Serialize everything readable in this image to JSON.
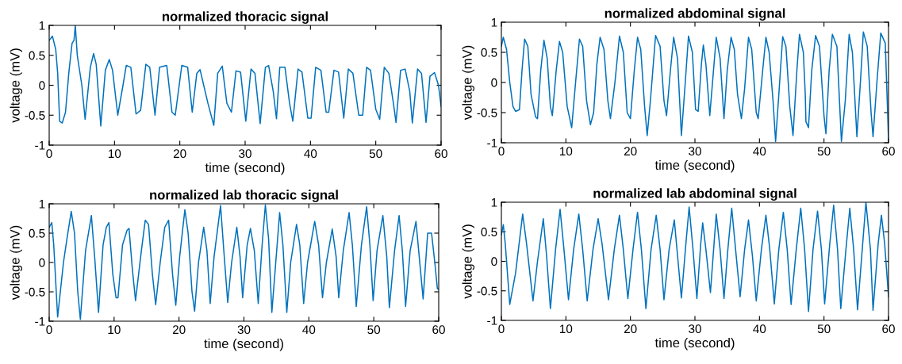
{
  "chart_data": [
    {
      "type": "line",
      "title": "normalized thoracic signal",
      "xlabel": "time (second)",
      "ylabel": "voltage (mV)",
      "xlim": [
        0,
        60
      ],
      "xticks": [
        0,
        10,
        20,
        30,
        40,
        50,
        60
      ],
      "ylim": [
        -1,
        1
      ],
      "yticks": [
        -1,
        -0.5,
        0,
        0.5,
        1
      ],
      "marker": "none",
      "line_style": "solid",
      "series": [
        {
          "color": "#0072bd",
          "x": [
            0,
            0.5,
            1.0,
            1.3,
            1.6,
            2.0,
            2.5,
            3.0,
            3.5,
            3.8,
            4.0,
            4.3,
            5.0,
            5.5,
            6.3,
            6.8,
            7.2,
            7.9,
            8.6,
            9.2,
            9.7,
            10.5,
            11.3,
            11.8,
            12.5,
            13.3,
            14.0,
            14.8,
            15.4,
            16.2,
            16.9,
            18.0,
            18.8,
            19.3,
            20.3,
            21.2,
            21.9,
            22.6,
            23.1,
            24.3,
            25.2,
            25.8,
            26.5,
            27.2,
            27.9,
            28.6,
            29.3,
            30.1,
            30.9,
            31.5,
            32.3,
            33.1,
            33.6,
            34.3,
            34.8,
            35.3,
            36.1,
            36.8,
            37.3,
            38.1,
            38.7,
            39.6,
            40.1,
            40.8,
            41.6,
            42.4,
            42.8,
            43.6,
            44.3,
            45.1,
            45.8,
            46.5,
            47.4,
            48.0,
            48.6,
            49.2,
            50.0,
            50.6,
            51.3,
            52.0,
            52.7,
            53.1,
            53.8,
            54.5,
            55.2,
            55.6,
            56.4,
            57.0,
            57.7,
            58.3,
            59.0,
            59.6,
            60
          ],
          "values": [
            0.75,
            0.82,
            0.6,
            0.2,
            -0.6,
            -0.63,
            -0.45,
            0.2,
            0.7,
            0.75,
            1.0,
            0.5,
            0.0,
            -0.57,
            0.3,
            0.53,
            0.35,
            -0.68,
            0.25,
            0.43,
            0.25,
            -0.5,
            0.0,
            0.33,
            0.3,
            -0.48,
            -0.42,
            0.35,
            0.3,
            -0.5,
            0.3,
            0.33,
            -0.45,
            -0.5,
            0.33,
            0.3,
            -0.45,
            0.2,
            0.26,
            -0.3,
            -0.67,
            0.2,
            0.32,
            -0.3,
            -0.45,
            0.24,
            0.22,
            -0.6,
            0.27,
            0.2,
            -0.64,
            0.3,
            0.33,
            -0.1,
            -0.56,
            0.3,
            0.3,
            -0.3,
            -0.6,
            0.27,
            0.22,
            -0.55,
            -0.55,
            0.3,
            0.25,
            -0.45,
            -0.45,
            0.25,
            0.22,
            -0.55,
            0.27,
            0.2,
            -0.5,
            -0.5,
            0.3,
            0.25,
            -0.4,
            -0.57,
            0.3,
            0.2,
            -0.3,
            -0.62,
            0.25,
            0.27,
            -0.1,
            -0.63,
            0.27,
            0.2,
            -0.62,
            0.15,
            0.21,
            0.0,
            -0.35
          ]
        }
      ]
    },
    {
      "type": "line",
      "title": "normalized abdominal signal",
      "xlabel": "time (second)",
      "ylabel": "voltage (mV)",
      "xlim": [
        0,
        60
      ],
      "xticks": [
        0,
        10,
        20,
        30,
        40,
        50,
        60
      ],
      "ylim": [
        -1,
        1
      ],
      "yticks": [
        -1,
        -0.5,
        0,
        0.5,
        1
      ],
      "marker": "none",
      "line_style": "solid",
      "series": [
        {
          "color": "#0072bd",
          "x": [
            0,
            0.3,
            0.8,
            1.3,
            1.8,
            2.2,
            2.8,
            3.2,
            3.6,
            4.1,
            4.6,
            5.3,
            5.6,
            6.1,
            6.6,
            7.1,
            7.6,
            7.9,
            8.5,
            9.0,
            9.5,
            10.2,
            10.9,
            11.5,
            12.1,
            12.6,
            13.2,
            13.8,
            14.3,
            14.8,
            15.3,
            15.9,
            16.5,
            16.9,
            17.6,
            18.3,
            18.9,
            19.5,
            20.0,
            20.6,
            21.1,
            21.6,
            22.2,
            22.6,
            23.1,
            23.9,
            24.6,
            25.2,
            25.6,
            26.2,
            26.7,
            27.3,
            27.9,
            28.5,
            29.0,
            29.6,
            30.1,
            30.5,
            31.0,
            31.3,
            31.7,
            32.3,
            32.8,
            33.3,
            33.9,
            34.5,
            35.0,
            35.6,
            36.1,
            36.6,
            37.2,
            37.7,
            38.3,
            38.8,
            39.5,
            39.8,
            40.5,
            41.0,
            41.5,
            42.1,
            42.5,
            43.0,
            43.6,
            44.1,
            44.7,
            45.2,
            45.8,
            46.2,
            46.8,
            47.1,
            47.2,
            47.6,
            48.1,
            48.7,
            49.3,
            50.0,
            50.3,
            50.8,
            51.3,
            52.0,
            52.7,
            53.3,
            53.9,
            54.4,
            55.1,
            55.7,
            56.1,
            56.7,
            57.3,
            57.6,
            58.2,
            58.8,
            59.5,
            60
          ],
          "values": [
            0.6,
            0.75,
            0.55,
            0.0,
            -0.4,
            -0.48,
            -0.45,
            0.2,
            0.72,
            0.6,
            -0.2,
            -0.57,
            -0.6,
            0.2,
            0.7,
            0.4,
            -0.4,
            -0.55,
            0.2,
            0.68,
            0.5,
            -0.4,
            -0.75,
            0.0,
            0.72,
            0.6,
            -0.3,
            -0.7,
            -0.5,
            0.3,
            0.75,
            0.55,
            -0.3,
            -0.6,
            0.0,
            0.77,
            0.5,
            -0.5,
            -0.6,
            0.2,
            0.75,
            0.55,
            -0.4,
            -0.88,
            -0.3,
            0.78,
            0.6,
            -0.3,
            -0.55,
            0.2,
            0.75,
            0.4,
            -0.88,
            0.0,
            0.77,
            0.5,
            -0.45,
            -0.48,
            0.3,
            0.62,
            0.3,
            -0.55,
            0.1,
            0.75,
            0.4,
            -0.6,
            0.2,
            0.75,
            0.55,
            -0.2,
            -0.6,
            -0.1,
            0.75,
            0.55,
            -0.5,
            -0.6,
            0.2,
            0.75,
            0.5,
            -0.3,
            -0.98,
            -0.2,
            0.76,
            0.6,
            -0.4,
            -0.88,
            0.2,
            0.8,
            0.5,
            -0.2,
            -0.65,
            -0.75,
            0.2,
            0.78,
            0.6,
            -0.55,
            -0.85,
            0.2,
            0.8,
            0.6,
            -0.98,
            -0.3,
            0.8,
            0.5,
            -0.9,
            0.1,
            0.84,
            0.6,
            -0.5,
            -0.9,
            0.0,
            0.82,
            0.65,
            -0.95
          ]
        }
      ]
    },
    {
      "type": "line",
      "title": "normalized lab thoracic signal",
      "xlabel": "time (second)",
      "ylabel": "voltage (mV)",
      "xlim": [
        0,
        60
      ],
      "xticks": [
        0,
        10,
        20,
        30,
        40,
        50,
        60
      ],
      "ylim": [
        -1,
        1
      ],
      "yticks": [
        -1,
        -0.5,
        0,
        0.5,
        1
      ],
      "marker": "none",
      "line_style": "solid",
      "series": [
        {
          "color": "#0072bd",
          "x": [
            0,
            0.4,
            0.7,
            1.3,
            2.2,
            2.8,
            3.4,
            3.9,
            4.4,
            4.8,
            5.6,
            6.2,
            6.5,
            7.0,
            7.6,
            8.3,
            8.8,
            9.2,
            9.8,
            10.3,
            10.6,
            11.3,
            12.0,
            12.3,
            12.8,
            13.3,
            14.2,
            14.8,
            15.3,
            15.9,
            16.4,
            17.1,
            17.8,
            18.4,
            19.0,
            19.5,
            20.1,
            20.9,
            21.4,
            22.0,
            22.4,
            23.0,
            23.8,
            24.3,
            24.8,
            25.4,
            26.4,
            26.9,
            27.5,
            28.1,
            28.9,
            29.4,
            29.8,
            30.5,
            31.0,
            31.6,
            32.2,
            32.8,
            33.3,
            33.8,
            34.3,
            34.9,
            35.5,
            36.0,
            36.6,
            37.2,
            38.1,
            38.6,
            39.2,
            39.8,
            40.9,
            41.5,
            42.1,
            42.7,
            43.6,
            44.2,
            44.6,
            45.3,
            46.2,
            46.7,
            47.3,
            48.1,
            48.9,
            49.4,
            49.9,
            50.5,
            51.4,
            52.0,
            52.4,
            53.2,
            53.9,
            54.4,
            54.9,
            55.6,
            56.5,
            57.0,
            57.6,
            58.3,
            58.9,
            59.4,
            59.8,
            60
          ],
          "values": [
            0.6,
            0.68,
            0.3,
            -0.93,
            0.0,
            0.45,
            0.87,
            0.5,
            -0.5,
            -0.97,
            0.2,
            0.6,
            0.8,
            0.1,
            -0.85,
            0.3,
            0.6,
            0.68,
            -0.2,
            -0.6,
            -0.6,
            0.3,
            0.55,
            0.58,
            -0.1,
            -0.65,
            0.2,
            0.72,
            0.65,
            -0.2,
            -0.72,
            0.0,
            0.6,
            0.72,
            -0.2,
            -0.73,
            0.1,
            0.9,
            0.5,
            -0.5,
            -0.83,
            0.0,
            0.6,
            0.2,
            -0.7,
            0.1,
            0.97,
            0.2,
            -0.68,
            0.0,
            0.6,
            0.1,
            -0.6,
            0.3,
            0.58,
            0.2,
            -0.7,
            0.3,
            0.98,
            0.4,
            -0.85,
            0.0,
            0.85,
            0.3,
            -0.85,
            0.0,
            0.65,
            0.3,
            -0.7,
            0.0,
            0.7,
            0.3,
            -0.6,
            0.0,
            0.57,
            0.1,
            -0.6,
            0.2,
            0.85,
            0.3,
            -0.75,
            0.3,
            0.95,
            0.3,
            -0.65,
            0.2,
            0.8,
            0.1,
            -0.77,
            0.2,
            0.8,
            0.2,
            -0.75,
            0.2,
            0.7,
            0.1,
            -0.62,
            0.5,
            0.5,
            0.0,
            -0.45,
            -0.45
          ]
        }
      ]
    },
    {
      "type": "line",
      "title": "normalized lab abdominal signal",
      "xlabel": "time (second)",
      "ylabel": "voltage (mV)",
      "xlim": [
        0,
        60
      ],
      "xticks": [
        0,
        10,
        20,
        30,
        40,
        50,
        60
      ],
      "ylim": [
        -1,
        1
      ],
      "yticks": [
        -1,
        -0.5,
        0,
        0.5,
        1
      ],
      "marker": "none",
      "line_style": "solid",
      "series": [
        {
          "color": "#0072bd",
          "x": [
            0,
            0.3,
            0.6,
            1.3,
            2.2,
            3.3,
            3.9,
            4.9,
            5.6,
            6.5,
            7.0,
            7.6,
            8.4,
            9.1,
            9.7,
            10.4,
            11.2,
            12.0,
            12.6,
            13.3,
            14.2,
            15.0,
            15.6,
            16.6,
            17.5,
            18.3,
            18.9,
            19.6,
            20.4,
            21.1,
            21.7,
            22.4,
            23.2,
            24.0,
            24.6,
            25.2,
            26.0,
            26.8,
            27.3,
            27.9,
            28.6,
            29.1,
            29.7,
            30.3,
            30.9,
            31.2,
            31.7,
            32.4,
            33.3,
            33.9,
            34.5,
            35.1,
            35.7,
            36.3,
            37.0,
            37.7,
            38.3,
            38.9,
            39.5,
            40.3,
            41.0,
            41.6,
            42.3,
            43.0,
            43.7,
            44.3,
            44.9,
            45.7,
            46.4,
            47.0,
            47.6,
            48.3,
            49.0,
            49.6,
            50.1,
            50.9,
            51.5,
            52.1,
            52.6,
            53.4,
            54.0,
            54.6,
            55.2,
            56.0,
            56.5,
            57.2,
            57.6,
            58.4,
            58.9,
            59.4,
            60
          ],
          "values": [
            0.45,
            0.62,
            0.3,
            -0.73,
            -0.2,
            0.8,
            0.3,
            -0.67,
            0.0,
            0.72,
            0.1,
            -0.8,
            0.2,
            0.88,
            0.2,
            -0.65,
            0.2,
            0.8,
            0.2,
            -0.67,
            0.2,
            0.72,
            0.3,
            -0.65,
            0.2,
            0.78,
            0.2,
            -0.63,
            0.2,
            0.83,
            0.2,
            -0.8,
            0.2,
            0.78,
            0.2,
            -0.65,
            0.2,
            0.7,
            0.1,
            -0.62,
            0.3,
            0.92,
            0.2,
            -0.63,
            0.3,
            0.65,
            0.2,
            -0.53,
            0.8,
            0.2,
            -0.63,
            0.2,
            0.9,
            0.2,
            -0.6,
            0.2,
            0.7,
            0.1,
            -0.67,
            0.2,
            0.78,
            0.2,
            -0.72,
            0.2,
            0.83,
            0.2,
            -0.73,
            0.2,
            0.9,
            0.2,
            -0.85,
            0.2,
            0.85,
            0.2,
            -0.72,
            0.3,
            0.95,
            0.2,
            -0.8,
            0.2,
            0.9,
            0.2,
            -0.82,
            0.3,
            1.0,
            0.2,
            -0.83,
            0.3,
            0.78,
            0.3,
            -0.6
          ]
        }
      ]
    }
  ]
}
